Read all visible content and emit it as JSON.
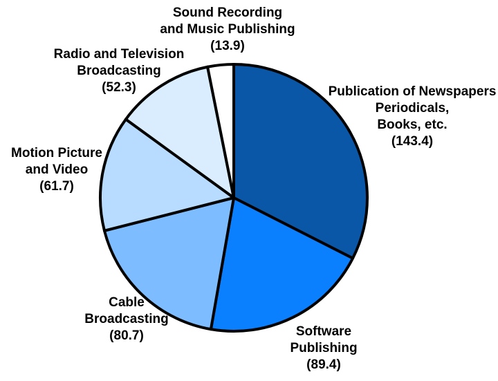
{
  "chart_data": {
    "type": "pie",
    "title": "",
    "slices": [
      {
        "label_lines": [
          "Publication of Newspapers",
          "Periodicals,",
          "Books, etc."
        ],
        "value_text": "(143.4)",
        "value": 143.4,
        "color": "#0a57a8"
      },
      {
        "label_lines": [
          "Software",
          "Publishing"
        ],
        "value_text": "(89.4)",
        "value": 89.4,
        "color": "#0a80ff"
      },
      {
        "label_lines": [
          "Cable",
          "Broadcasting"
        ],
        "value_text": "(80.7)",
        "value": 80.7,
        "color": "#7dbdff"
      },
      {
        "label_lines": [
          "Motion Picture",
          "and Video"
        ],
        "value_text": "(61.7)",
        "value": 61.7,
        "color": "#b7dcff"
      },
      {
        "label_lines": [
          "Radio and Television",
          "Broadcasting"
        ],
        "value_text": "(52.3)",
        "value": 52.3,
        "color": "#daedff"
      },
      {
        "label_lines": [
          "Sound Recording",
          "and Music Publishing"
        ],
        "value_text": "(13.9)",
        "value": 13.9,
        "color": "#ffffff"
      }
    ]
  }
}
